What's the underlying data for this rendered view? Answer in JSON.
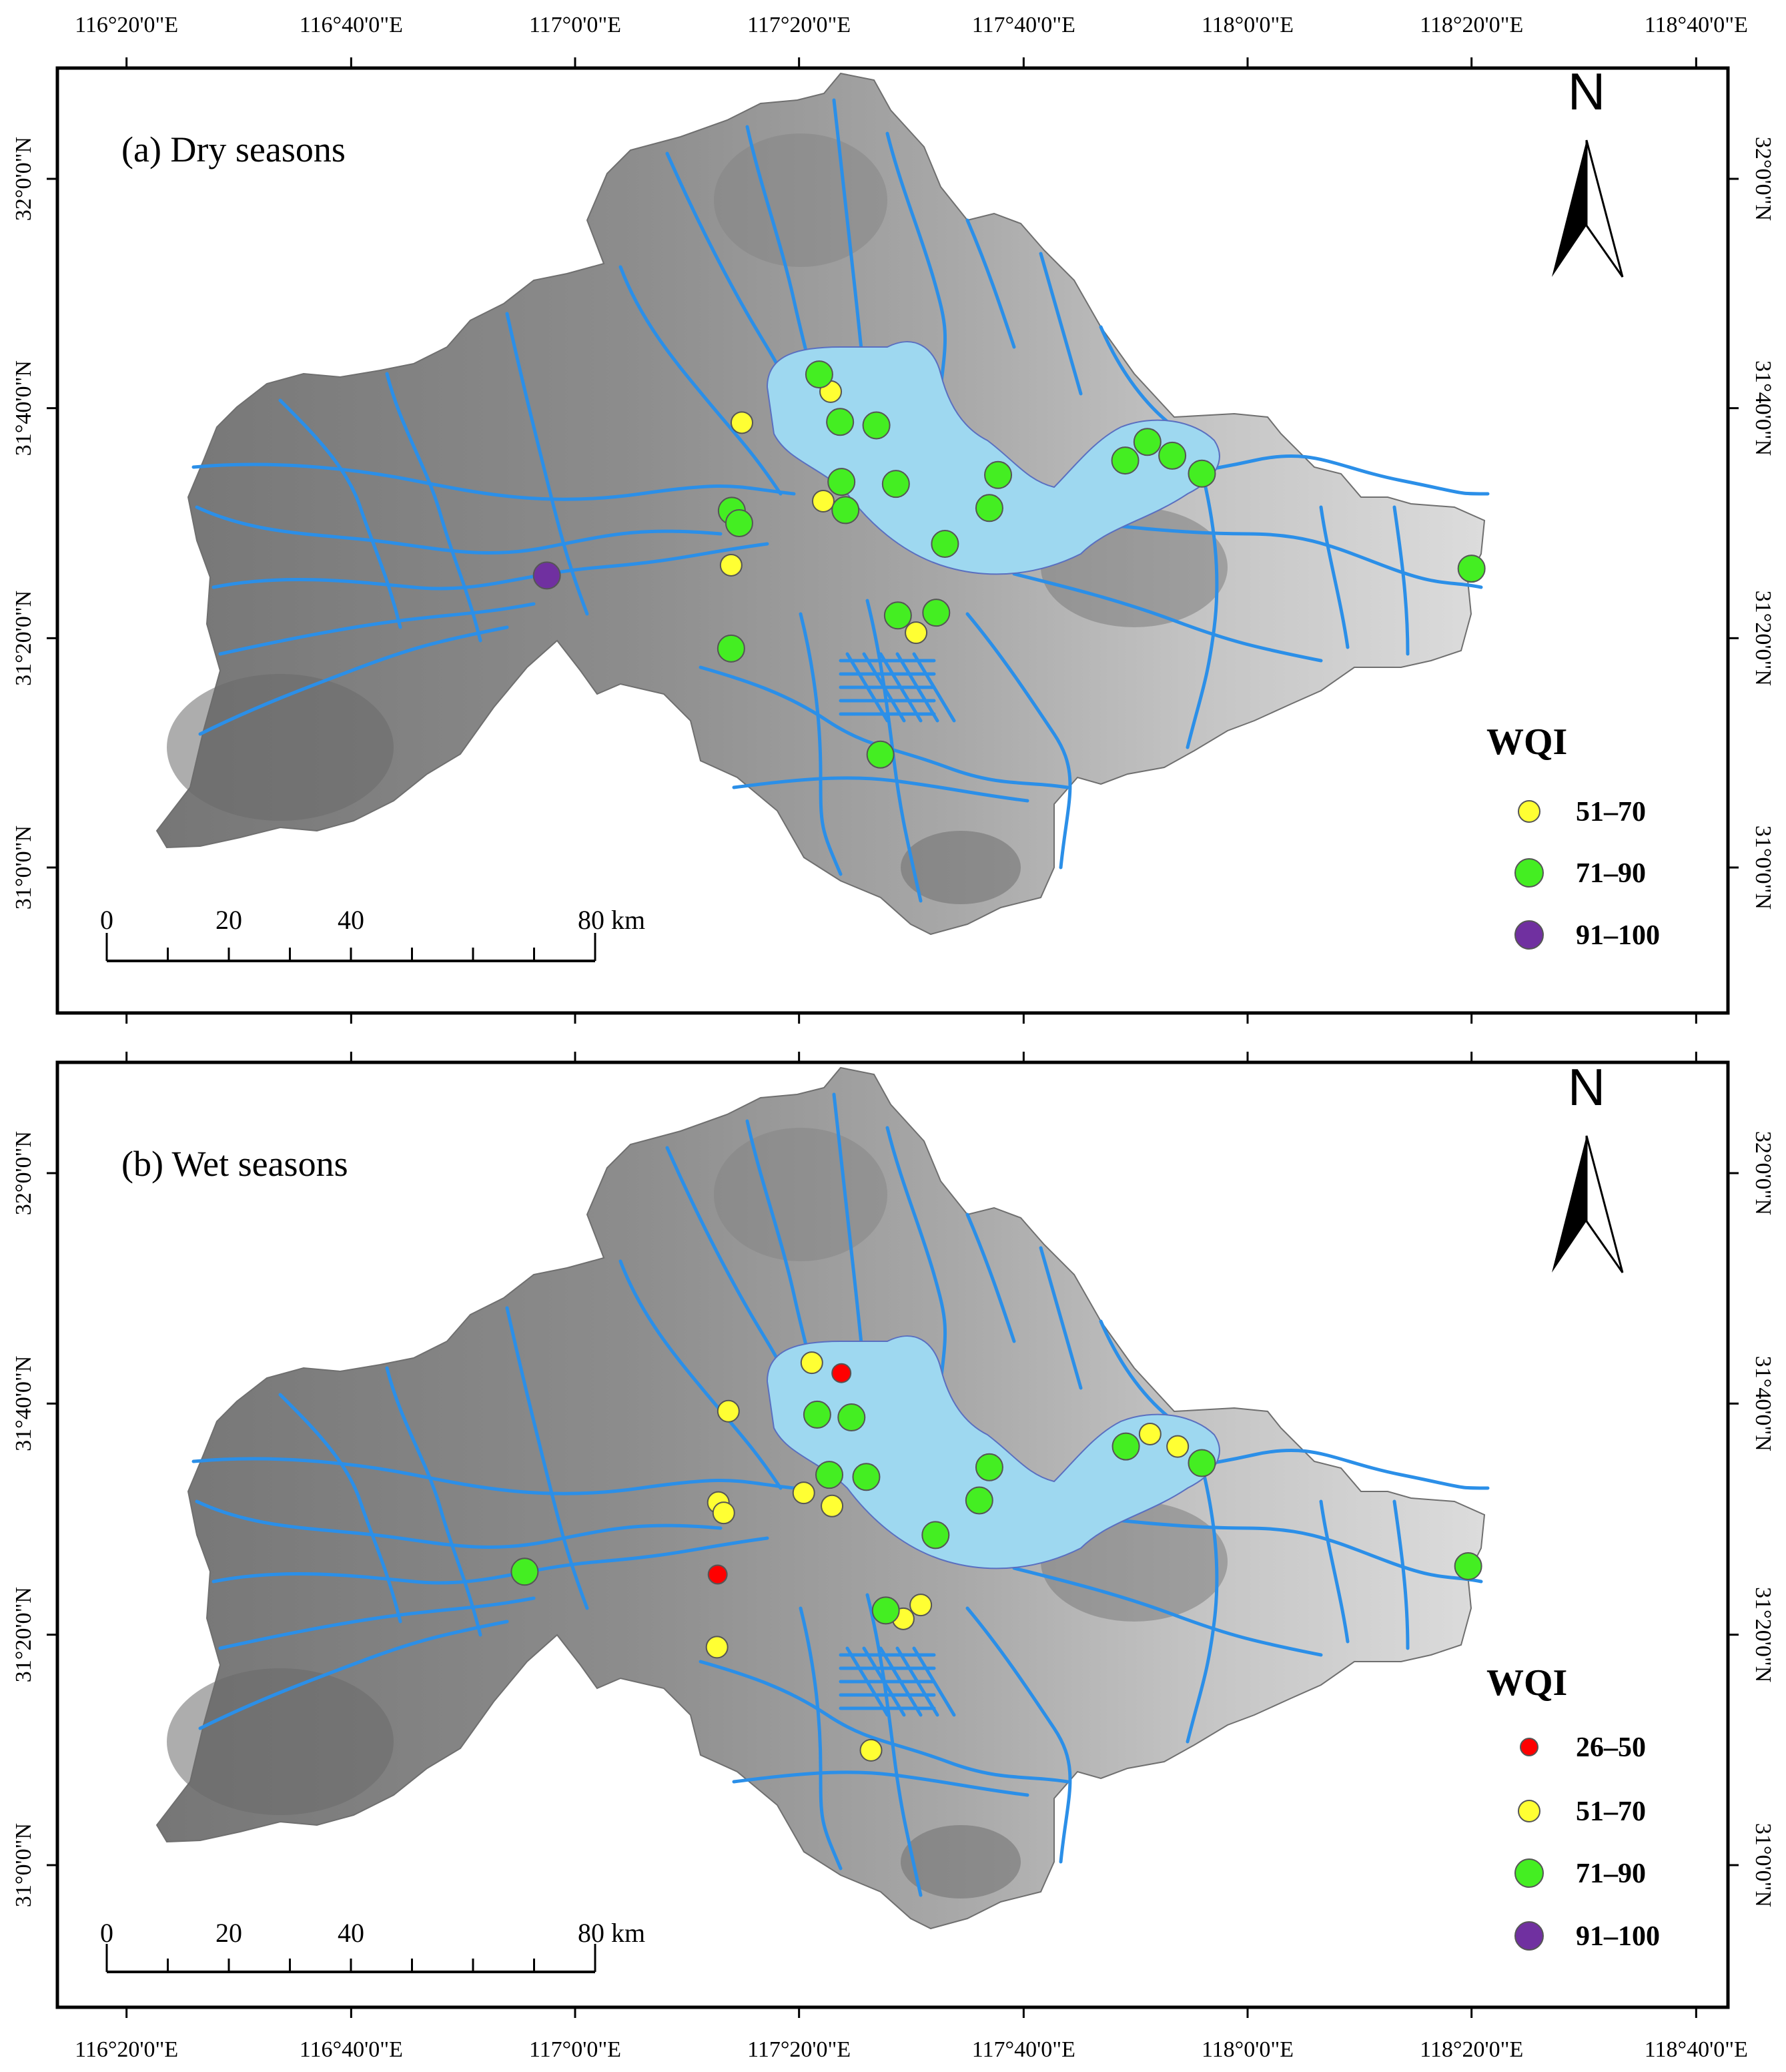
{
  "lon_ticks": [
    "116°20'0\"E",
    "116°40'0\"E",
    "117°0'0\"E",
    "117°20'0\"E",
    "117°40'0\"E",
    "118°0'0\"E",
    "118°20'0\"E",
    "118°40'0\"E"
  ],
  "lat_ticks": [
    "32°0'0\"N",
    "31°40'0\"N",
    "31°20'0\"N",
    "31°0'0\"N"
  ],
  "lon_values": [
    116.333,
    116.667,
    117.0,
    117.333,
    117.667,
    118.0,
    118.333,
    118.667
  ],
  "lat_values": [
    32.0,
    31.667,
    31.333,
    31.0
  ],
  "colors": {
    "terrain_dark": "#767676",
    "terrain_mid": "#a8a8a8",
    "terrain_light": "#dcdcdc",
    "lake": "#9ed8f0",
    "river": "#2b8fe8",
    "class_26_50": "#ff0000",
    "class_51_70": "#ffff33",
    "class_71_90": "#44ee22",
    "class_91_100": "#7030a0"
  },
  "north_arrow": "N",
  "scale_bar": {
    "labels": [
      "0",
      "20",
      "40",
      "80 km"
    ],
    "values_km": [
      0,
      20,
      40,
      80
    ]
  },
  "panels": [
    {
      "id": "a",
      "title": "(a)   Dry seasons",
      "legend": {
        "title": "WQI",
        "entries": [
          {
            "label": "51–70",
            "color_key": "class_51_70"
          },
          {
            "label": "71–90",
            "color_key": "class_71_90"
          },
          {
            "label": "91–100",
            "color_key": "class_91_100"
          }
        ]
      },
      "sites": [
        {
          "lon": 117.248,
          "lat": 31.646,
          "cls": "class_51_70"
        },
        {
          "lon": 117.38,
          "lat": 31.691,
          "cls": "class_51_70"
        },
        {
          "lon": 117.369,
          "lat": 31.532,
          "cls": "class_51_70"
        },
        {
          "lon": 117.232,
          "lat": 31.439,
          "cls": "class_51_70"
        },
        {
          "lon": 117.507,
          "lat": 31.341,
          "cls": "class_51_70"
        },
        {
          "lon": 117.363,
          "lat": 31.716,
          "cls": "class_71_90"
        },
        {
          "lon": 117.394,
          "lat": 31.647,
          "cls": "class_71_90"
        },
        {
          "lon": 117.448,
          "lat": 31.642,
          "cls": "class_71_90"
        },
        {
          "lon": 117.396,
          "lat": 31.56,
          "cls": "class_71_90"
        },
        {
          "lon": 117.402,
          "lat": 31.519,
          "cls": "class_71_90"
        },
        {
          "lon": 117.233,
          "lat": 31.518,
          "cls": "class_71_90"
        },
        {
          "lon": 117.244,
          "lat": 31.5,
          "cls": "class_71_90"
        },
        {
          "lon": 117.477,
          "lat": 31.557,
          "cls": "class_71_90"
        },
        {
          "lon": 117.629,
          "lat": 31.57,
          "cls": "class_71_90"
        },
        {
          "lon": 117.616,
          "lat": 31.522,
          "cls": "class_71_90"
        },
        {
          "lon": 117.55,
          "lat": 31.47,
          "cls": "class_71_90"
        },
        {
          "lon": 117.818,
          "lat": 31.591,
          "cls": "class_71_90"
        },
        {
          "lon": 117.851,
          "lat": 31.618,
          "cls": "class_71_90"
        },
        {
          "lon": 117.888,
          "lat": 31.598,
          "cls": "class_71_90"
        },
        {
          "lon": 117.932,
          "lat": 31.572,
          "cls": "class_71_90"
        },
        {
          "lon": 117.48,
          "lat": 31.366,
          "cls": "class_71_90"
        },
        {
          "lon": 117.537,
          "lat": 31.37,
          "cls": "class_71_90"
        },
        {
          "lon": 117.232,
          "lat": 31.318,
          "cls": "class_71_90"
        },
        {
          "lon": 117.454,
          "lat": 31.164,
          "cls": "class_71_90"
        },
        {
          "lon": 118.333,
          "lat": 31.434,
          "cls": "class_71_90"
        },
        {
          "lon": 116.958,
          "lat": 31.424,
          "cls": "class_91_100"
        }
      ]
    },
    {
      "id": "b",
      "title": "(b)   Wet seasons",
      "legend": {
        "title": "WQI",
        "entries": [
          {
            "label": "26–50",
            "color_key": "class_26_50"
          },
          {
            "label": "51–70",
            "color_key": "class_51_70"
          },
          {
            "label": "71–90",
            "color_key": "class_71_90"
          },
          {
            "label": "91–100",
            "color_key": "class_91_100"
          }
        ]
      },
      "sites": [
        {
          "lon": 117.396,
          "lat": 31.711,
          "cls": "class_26_50"
        },
        {
          "lon": 117.212,
          "lat": 31.42,
          "cls": "class_26_50"
        },
        {
          "lon": 117.352,
          "lat": 31.726,
          "cls": "class_51_70"
        },
        {
          "lon": 117.228,
          "lat": 31.656,
          "cls": "class_51_70"
        },
        {
          "lon": 117.213,
          "lat": 31.524,
          "cls": "class_51_70"
        },
        {
          "lon": 117.221,
          "lat": 31.509,
          "cls": "class_51_70"
        },
        {
          "lon": 117.34,
          "lat": 31.538,
          "cls": "class_51_70"
        },
        {
          "lon": 117.382,
          "lat": 31.519,
          "cls": "class_51_70"
        },
        {
          "lon": 117.211,
          "lat": 31.315,
          "cls": "class_51_70"
        },
        {
          "lon": 117.514,
          "lat": 31.376,
          "cls": "class_51_70"
        },
        {
          "lon": 117.488,
          "lat": 31.356,
          "cls": "class_51_70"
        },
        {
          "lon": 117.44,
          "lat": 31.166,
          "cls": "class_51_70"
        },
        {
          "lon": 117.855,
          "lat": 31.623,
          "cls": "class_51_70"
        },
        {
          "lon": 117.896,
          "lat": 31.605,
          "cls": "class_51_70"
        },
        {
          "lon": 117.36,
          "lat": 31.651,
          "cls": "class_71_90"
        },
        {
          "lon": 117.411,
          "lat": 31.647,
          "cls": "class_71_90"
        },
        {
          "lon": 117.378,
          "lat": 31.564,
          "cls": "class_71_90"
        },
        {
          "lon": 117.433,
          "lat": 31.561,
          "cls": "class_71_90"
        },
        {
          "lon": 117.616,
          "lat": 31.575,
          "cls": "class_71_90"
        },
        {
          "lon": 117.601,
          "lat": 31.527,
          "cls": "class_71_90"
        },
        {
          "lon": 117.536,
          "lat": 31.477,
          "cls": "class_71_90"
        },
        {
          "lon": 117.819,
          "lat": 31.605,
          "cls": "class_71_90"
        },
        {
          "lon": 117.932,
          "lat": 31.581,
          "cls": "class_71_90"
        },
        {
          "lon": 117.462,
          "lat": 31.368,
          "cls": "class_71_90"
        },
        {
          "lon": 116.925,
          "lat": 31.424,
          "cls": "class_71_90"
        },
        {
          "lon": 118.328,
          "lat": 31.432,
          "cls": "class_71_90"
        }
      ]
    }
  ]
}
